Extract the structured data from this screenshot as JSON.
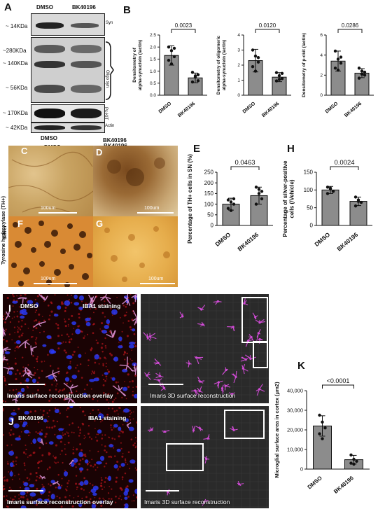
{
  "panels": {
    "A": "A",
    "B": "B",
    "C": "C",
    "D": "D",
    "E": "E",
    "F": "F",
    "G": "G",
    "H": "H",
    "I": "I",
    "J": "J",
    "K": "K"
  },
  "western": {
    "top_labels": [
      "DMSO",
      "BK40196"
    ],
    "bottom_labels": [
      "DMSO",
      "BK40196"
    ],
    "markers": [
      "~ 14KDa",
      "~280KDa",
      "~ 140KDa",
      "~ 56KDa",
      "~ 170KDa",
      "~ 42KDa"
    ],
    "right_labels": {
      "syn": "Syn",
      "oligo": "Oligo syn",
      "pckit": "Pc-KIT",
      "actin": "Actin"
    }
  },
  "histology": {
    "row_label_th": "Tyrosine hydroxylase (TH+)",
    "row_label_silver": "Silver",
    "scale_label": "100um"
  },
  "microglia": {
    "I": {
      "treatment": "DMSO",
      "stain": "IBA1 staining",
      "overlay_caption": "Imaris surface reconstruction overlay",
      "recon_caption": "Imaris 3D surface reconstruction"
    },
    "J": {
      "treatment": "BK40196",
      "stain": "IBA1 staining",
      "overlay_caption": "Imaris surface reconstruction overlay",
      "recon_caption": "Imaris 3D surface reconstruction"
    }
  },
  "colors": {
    "bar": "#8c8c8c",
    "magenta": "#d14bd6",
    "red_stain": "#b5161b",
    "blue_nuclei": "#2b3cff",
    "th_stain": "#c28a3a"
  },
  "chart_data": [
    {
      "id": "B1",
      "type": "bar",
      "ylabel": "Densitometry of alpha-synuclein (/actin)",
      "categories": [
        "DMSO",
        "BK40196"
      ],
      "values": [
        1.65,
        0.72
      ],
      "errors": [
        0.4,
        0.2
      ],
      "points": [
        [
          2.0,
          1.85,
          1.6,
          1.45,
          1.3,
          1.95
        ],
        [
          0.95,
          0.8,
          0.6,
          0.55,
          0.75,
          0.85
        ]
      ],
      "ylim": [
        0,
        2.5
      ],
      "yticks": [
        0.0,
        0.5,
        1.0,
        1.5,
        2.0,
        2.5
      ],
      "pvalue": "0.0023"
    },
    {
      "id": "B2",
      "type": "bar",
      "ylabel": "Densitometry of oligomeric alpha-synuclein (/actin)",
      "categories": [
        "DMSO",
        "BK40196"
      ],
      "values": [
        2.3,
        1.2
      ],
      "errors": [
        0.75,
        0.3
      ],
      "points": [
        [
          3.0,
          2.6,
          2.2,
          1.9,
          1.6,
          2.5
        ],
        [
          1.5,
          1.3,
          1.1,
          0.95,
          1.05,
          1.45
        ]
      ],
      "ylim": [
        0,
        4
      ],
      "yticks": [
        0,
        1,
        2,
        3,
        4
      ],
      "pvalue": "0.0120"
    },
    {
      "id": "B3",
      "type": "bar",
      "ylabel": "Densitometry of p-ckit (/actin)",
      "categories": [
        "DMSO",
        "BK40196"
      ],
      "values": [
        3.4,
        2.2
      ],
      "errors": [
        1.0,
        0.45
      ],
      "points": [
        [
          4.4,
          3.6,
          3.2,
          2.7,
          2.5,
          3.8
        ],
        [
          2.7,
          2.4,
          2.0,
          1.7,
          2.1,
          2.3
        ]
      ],
      "ylim": [
        0,
        6
      ],
      "yticks": [
        0,
        2,
        4,
        6
      ],
      "pvalue": "0.0286"
    },
    {
      "id": "E",
      "type": "bar",
      "ylabel": "Percentage of TH+ cells in SN (%)",
      "categories": [
        "DMSO",
        "BK40196"
      ],
      "values": [
        100,
        140
      ],
      "errors": [
        28,
        40
      ],
      "points": [
        [
          120,
          110,
          100,
          80,
          70,
          125
        ],
        [
          180,
          150,
          125,
          100,
          170,
          160
        ]
      ],
      "ylim": [
        0,
        250
      ],
      "yticks": [
        0,
        50,
        100,
        150,
        200,
        250
      ],
      "pvalue": "0.0463"
    },
    {
      "id": "H",
      "type": "bar",
      "ylabel": "Percentage of silver-positive cells (/Vehicle)",
      "categories": [
        "DMSO",
        "BK40196"
      ],
      "values": [
        100,
        68
      ],
      "errors": [
        10,
        12
      ],
      "points": [
        [
          108,
          103,
          96,
          90,
          105
        ],
        [
          80,
          72,
          65,
          55,
          68
        ]
      ],
      "ylim": [
        0,
        150
      ],
      "yticks": [
        0,
        50,
        100,
        150
      ],
      "pvalue": "0.0024"
    },
    {
      "id": "K",
      "type": "bar",
      "ylabel": "Microglial surface area in cortex (μm2)",
      "categories": [
        "DMSO",
        "BK40196"
      ],
      "values": [
        22000,
        4800
      ],
      "errors": [
        5200,
        2200
      ],
      "points": [
        [
          27500,
          24000,
          21000,
          18000,
          15500
        ],
        [
          7200,
          5000,
          4000,
          3000,
          2500
        ]
      ],
      "ylim": [
        0,
        40000
      ],
      "yticks": [
        "0",
        "10,000",
        "20,000",
        "30,000",
        "40,000"
      ],
      "ytick_values": [
        0,
        10000,
        20000,
        30000,
        40000
      ],
      "pvalue": "<0.0001"
    }
  ]
}
